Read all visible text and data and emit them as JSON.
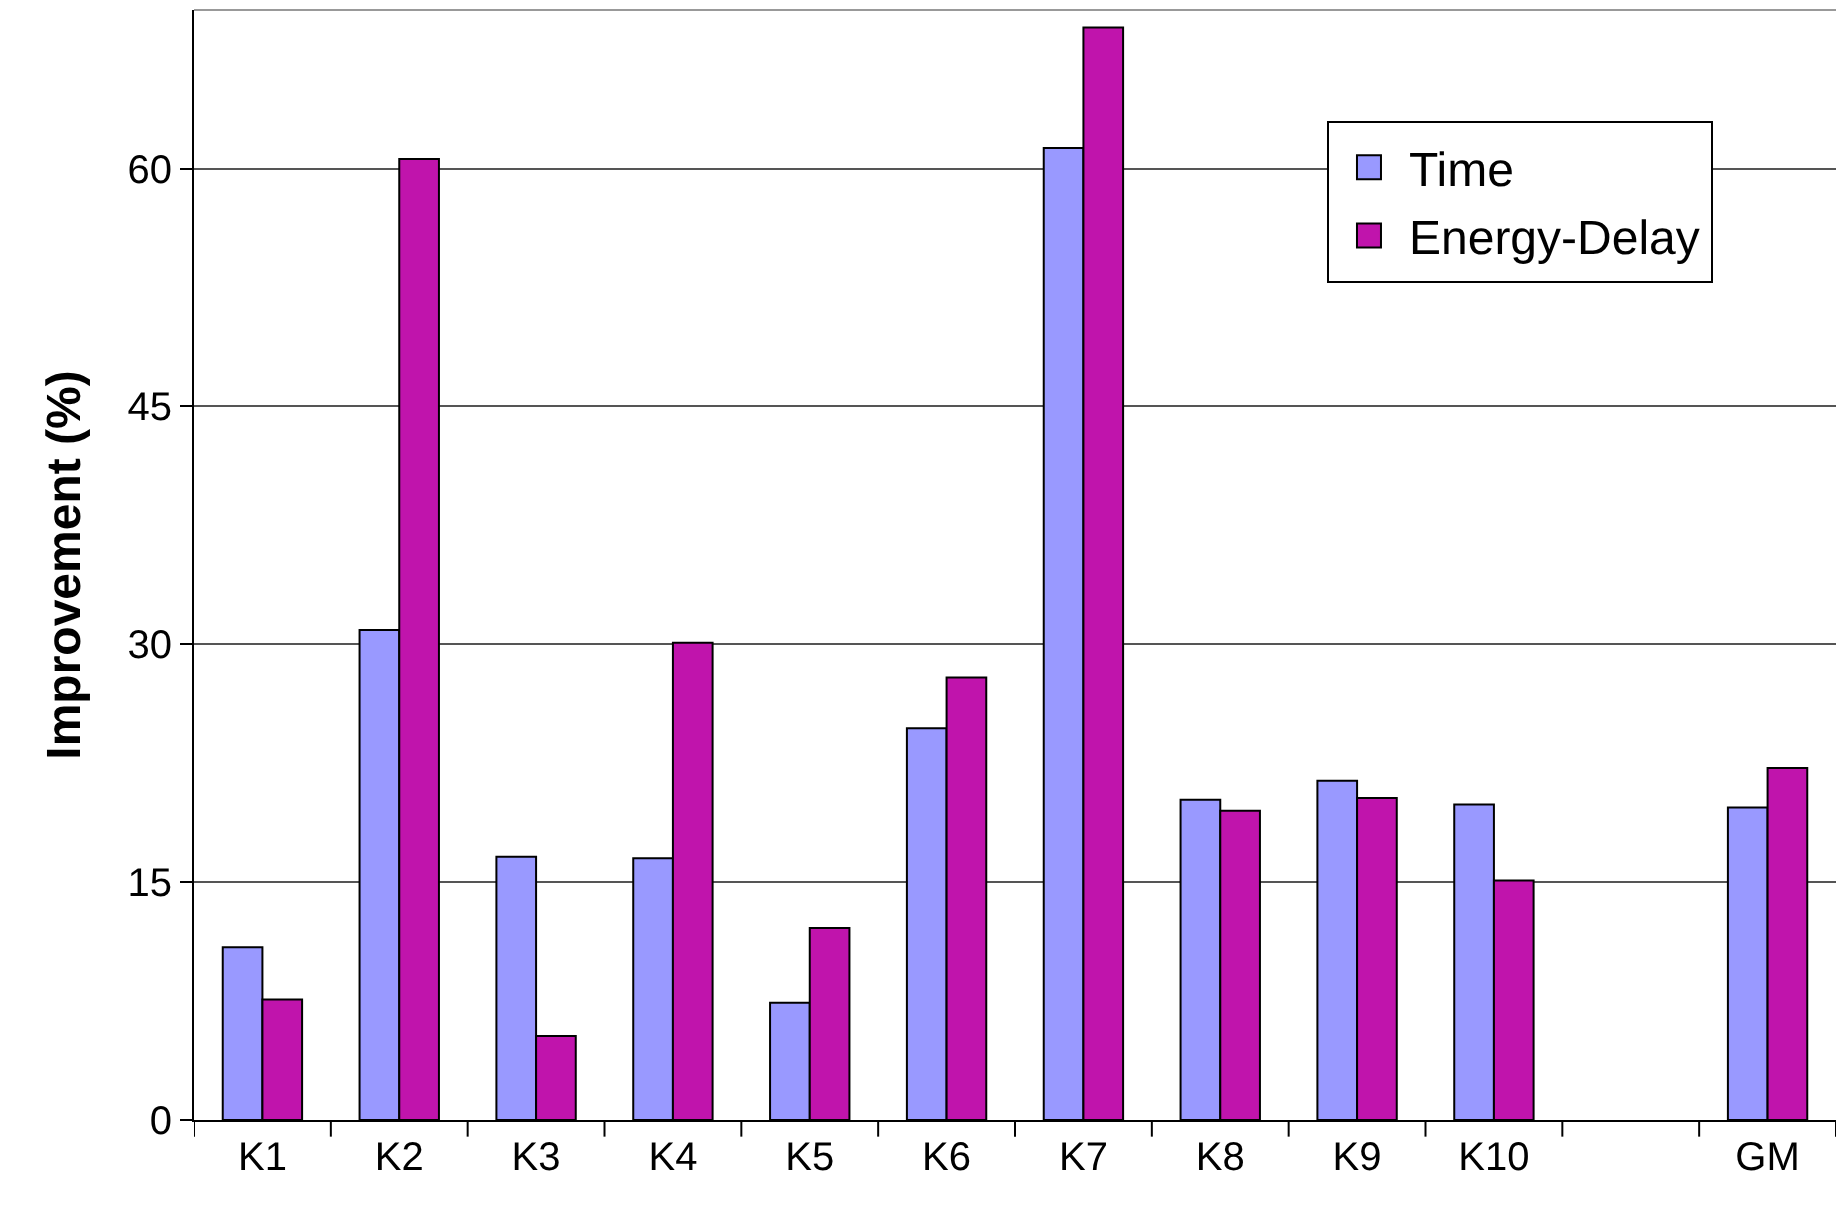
{
  "chart_data": {
    "type": "bar",
    "ylabel": "Improvement (%)",
    "categories": [
      "K1",
      "K2",
      "K3",
      "K4",
      "K5",
      "K6",
      "K7",
      "K8",
      "K9",
      "K10",
      null,
      "GM"
    ],
    "series": [
      {
        "name": "Time",
        "color": "#9999ff",
        "values": [
          10.9,
          30.9,
          16.6,
          16.5,
          7.4,
          24.7,
          61.3,
          20.2,
          21.4,
          19.9,
          null,
          19.7
        ]
      },
      {
        "name": "Energy-Delay",
        "color": "#c014ac",
        "values": [
          7.6,
          60.6,
          5.3,
          30.1,
          12.1,
          27.9,
          68.9,
          19.5,
          20.3,
          15.1,
          null,
          22.2
        ]
      }
    ],
    "ylim": [
      0,
      70
    ],
    "yticks": [
      0,
      15,
      30,
      45,
      60
    ],
    "grid": "y",
    "legend": "top right"
  }
}
